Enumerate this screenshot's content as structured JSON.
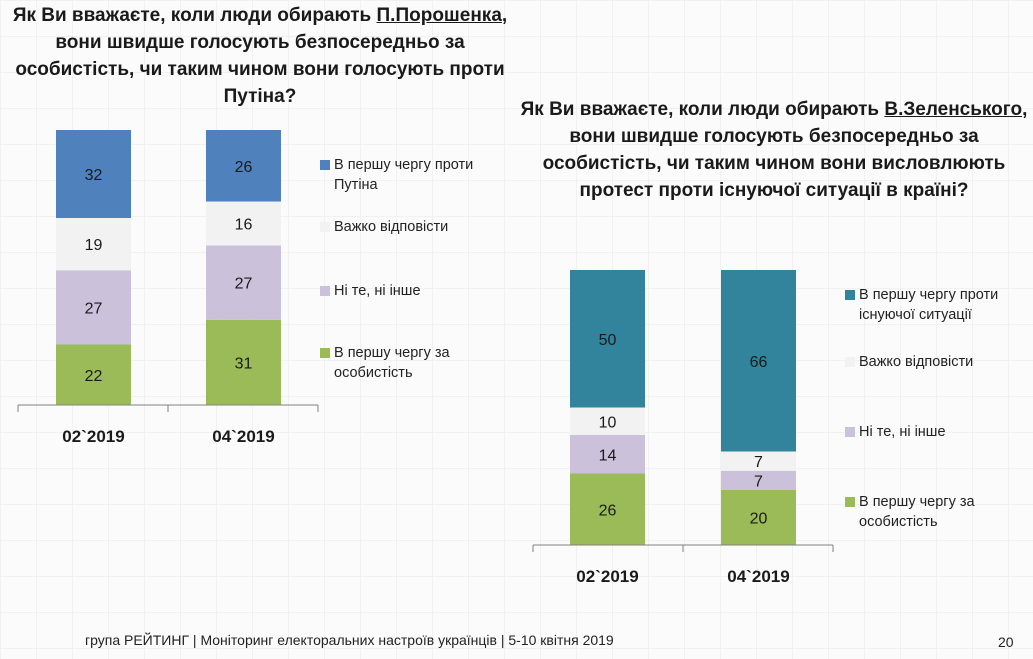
{
  "footer": {
    "text": "група РЕЙТИНГ | Моніторинг електоральних настроїв українців  |  5-10 квітня  2019",
    "page_number": "20"
  },
  "chart_data": [
    {
      "type": "bar",
      "stacked": true,
      "title_parts": [
        "Як Ви вважаєте, коли люди обирають ",
        "П.Порошенка",
        ", вони швидше голосують безпосередньо за особистість, чи таким чином вони голосують проти Путіна?"
      ],
      "title": "Як Ви вважаєте, коли люди обирають П.Порошенка, вони швидше голосують безпосередньо за особистість, чи таким чином вони голосують проти Путіна?",
      "categories": [
        "02`2019",
        "04`2019"
      ],
      "series": [
        {
          "name": "В першу чергу за особистість",
          "color": "#9bbb59",
          "values": [
            22,
            31
          ]
        },
        {
          "name": "Ні те, ні інше",
          "color": "#ccc1da",
          "values": [
            27,
            27
          ]
        },
        {
          "name": "Важко відповісти",
          "color": "#f2f2f2",
          "values": [
            19,
            16
          ]
        },
        {
          "name": "В першу чергу проти Путіна",
          "color": "#4f81bd",
          "values": [
            32,
            26
          ]
        }
      ],
      "legend": [
        {
          "label_lines": [
            "В першу чергу проти",
            "Путіна"
          ],
          "color": "#4f81bd"
        },
        {
          "label_lines": [
            "Важко відповісти"
          ],
          "color": "#f2f2f2"
        },
        {
          "label_lines": [
            "Ні те, ні інше"
          ],
          "color": "#ccc1da"
        },
        {
          "label_lines": [
            "В першу чергу за",
            "особистість"
          ],
          "color": "#9bbb59"
        }
      ],
      "legend_position": "right",
      "ylim": [
        0,
        100
      ],
      "xlabel": "",
      "ylabel": "",
      "grid": false
    },
    {
      "type": "bar",
      "stacked": true,
      "title_parts": [
        "Як Ви вважаєте, коли люди обирають ",
        "В.Зеленського",
        ", вони швидше голосують безпосередньо за особистість, чи таким чином вони висловлюють протест проти існуючої ситуації в країні?"
      ],
      "title": "Як Ви вважаєте, коли люди обирають В.Зеленського, вони швидше голосують безпосередньо за особистість, чи таким чином вони висловлюють протест проти існуючої ситуації в країні?",
      "categories": [
        "02`2019",
        "04`2019"
      ],
      "series": [
        {
          "name": "В першу чергу за особистість",
          "color": "#9bbb59",
          "values": [
            26,
            20
          ]
        },
        {
          "name": "Ні те, ні інше",
          "color": "#ccc1da",
          "values": [
            14,
            7
          ]
        },
        {
          "name": "Важко відповісти",
          "color": "#f2f2f2",
          "values": [
            10,
            7
          ]
        },
        {
          "name": "В першу чергу проти існуючої ситуації",
          "color": "#31849b",
          "values": [
            50,
            66
          ]
        }
      ],
      "legend": [
        {
          "label_lines": [
            "В першу чергу проти",
            "існуючої ситуації"
          ],
          "color": "#31849b"
        },
        {
          "label_lines": [
            "Важко відповісти"
          ],
          "color": "#f2f2f2"
        },
        {
          "label_lines": [
            "Ні те, ні інше"
          ],
          "color": "#ccc1da"
        },
        {
          "label_lines": [
            "В першу чергу за",
            "особистість"
          ],
          "color": "#9bbb59"
        }
      ],
      "legend_position": "right",
      "ylim": [
        0,
        100
      ],
      "xlabel": "",
      "ylabel": "",
      "grid": false
    }
  ]
}
